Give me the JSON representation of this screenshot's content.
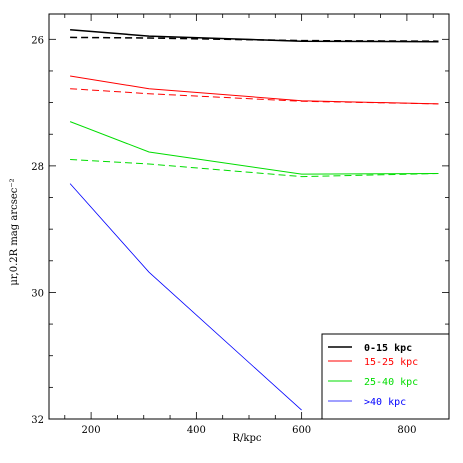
{
  "chart_data": {
    "type": "line",
    "xlabel": "R/kpc",
    "ylabel": "μr,0.2R mag arcsec⁻²",
    "xlim": [
      120,
      880
    ],
    "ylim": [
      32,
      25.6
    ],
    "y_inverted": true,
    "x_ticks": [
      200,
      400,
      600,
      800
    ],
    "y_ticks": [
      26,
      28,
      30,
      32
    ],
    "grid": false,
    "legend_position": "bottom-right",
    "legend": [
      {
        "label": "0-15 kpc",
        "color": "#000000"
      },
      {
        "label": "15-25 kpc",
        "color": "#ff0000"
      },
      {
        "label": "25-40 kpc",
        "color": "#00dd00"
      },
      {
        "label": ">40 kpc",
        "color": "#0000ff"
      }
    ],
    "series": [
      {
        "color": "#000000",
        "style": "solid",
        "width": 1.5,
        "x": [
          160,
          310,
          600,
          860
        ],
        "y": [
          25.85,
          25.95,
          26.03,
          26.04
        ]
      },
      {
        "color": "#000000",
        "style": "dashed",
        "width": 1.5,
        "x": [
          160,
          310,
          600,
          860
        ],
        "y": [
          25.97,
          25.98,
          26.02,
          26.03
        ]
      },
      {
        "color": "#ff0000",
        "style": "solid",
        "width": 1,
        "x": [
          160,
          310,
          600,
          860
        ],
        "y": [
          26.58,
          26.78,
          26.97,
          27.02
        ]
      },
      {
        "color": "#ff0000",
        "style": "dashed",
        "width": 1,
        "x": [
          160,
          310,
          600,
          860
        ],
        "y": [
          26.78,
          26.86,
          26.98,
          27.02
        ]
      },
      {
        "color": "#00dd00",
        "style": "solid",
        "width": 1,
        "x": [
          160,
          310,
          600,
          860
        ],
        "y": [
          27.3,
          27.78,
          28.13,
          28.12
        ]
      },
      {
        "color": "#00dd00",
        "style": "dashed",
        "width": 1,
        "x": [
          160,
          310,
          600,
          860
        ],
        "y": [
          27.9,
          27.97,
          28.17,
          28.12
        ]
      },
      {
        "color": "#0000ff",
        "style": "solid",
        "width": 0.8,
        "x": [
          160,
          310,
          600
        ],
        "y": [
          28.28,
          29.68,
          31.86
        ]
      }
    ]
  }
}
